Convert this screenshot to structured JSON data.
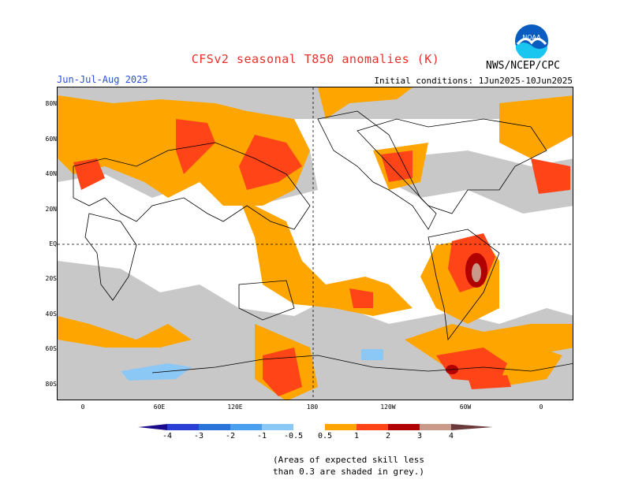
{
  "header": {
    "title": "CFSv2 seasonal T850 anomalies (K)",
    "season": "Jun-Jul-Aug 2025",
    "initial_conditions": "Initial conditions: 1Jun2025-10Jun2025",
    "agency": "NWS/NCEP/CPC",
    "logo_text": "NOAA"
  },
  "map": {
    "lat_labels": [
      "80N",
      "60N",
      "40N",
      "20N",
      "EQ",
      "20S",
      "40S",
      "60S",
      "80S"
    ],
    "lon_labels": [
      "0",
      "60E",
      "120E",
      "180",
      "120W",
      "60W",
      "0"
    ]
  },
  "colorbar": {
    "ticks": [
      "-4",
      "-3",
      "-2",
      "-1",
      "-0.5",
      "0.5",
      "1",
      "2",
      "3",
      "4"
    ],
    "colors": {
      "lt_-4": "#1a0a8c",
      "-4_-3": "#2a3fd6",
      "-3_-2": "#2a74d8",
      "-2_-1": "#4aa0ee",
      "-1_-0.5": "#8cc8f5",
      "-0.5_0.5": "#ffffff",
      "0.5_1": "#ffa500",
      "1_2": "#ff4418",
      "2_3": "#b10000",
      "3_4": "#c99a8a",
      "gt_4": "#6b3a3a"
    },
    "grey_color": "#c8c8c8"
  },
  "note": {
    "line1": "(Areas of expected skill less",
    "line2": "than 0.3 are shaded in grey.)"
  }
}
